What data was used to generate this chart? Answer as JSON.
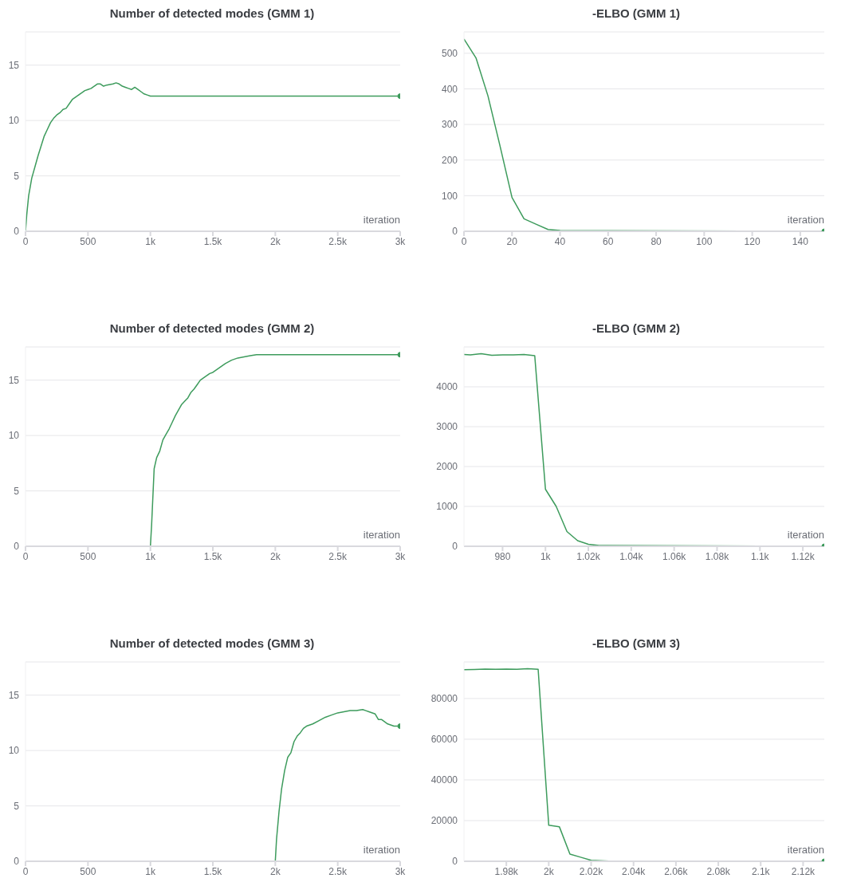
{
  "chart_data": [
    {
      "type": "line",
      "title": "Number of detected modes (GMM 1)",
      "xlabel": "iteration",
      "color": "#3d9b5c",
      "grid": "y",
      "xlim": [
        0,
        3000
      ],
      "xticks": [
        0,
        500,
        {
          "value": 1000,
          "label": "1k"
        },
        {
          "value": 1500,
          "label": "1.5k"
        },
        {
          "value": 2000,
          "label": "2k"
        },
        {
          "value": 2500,
          "label": "2.5k"
        },
        {
          "value": 3000,
          "label": "3k"
        }
      ],
      "ylim": [
        0,
        18
      ],
      "yticks": [
        0,
        5,
        10,
        15
      ],
      "x": [
        0,
        10,
        25,
        50,
        75,
        100,
        125,
        150,
        175,
        200,
        225,
        250,
        275,
        300,
        325,
        350,
        375,
        400,
        425,
        450,
        475,
        500,
        525,
        550,
        575,
        600,
        625,
        650,
        700,
        725,
        750,
        775,
        800,
        825,
        850,
        875,
        900,
        925,
        950,
        975,
        1000,
        3000
      ],
      "values": [
        0,
        1.5,
        3.2,
        4.8,
        5.8,
        6.8,
        7.7,
        8.6,
        9.2,
        9.8,
        10.2,
        10.5,
        10.7,
        11.0,
        11.1,
        11.5,
        11.9,
        12.1,
        12.3,
        12.5,
        12.7,
        12.8,
        12.9,
        13.1,
        13.3,
        13.3,
        13.1,
        13.2,
        13.3,
        13.4,
        13.3,
        13.1,
        13.0,
        12.9,
        12.8,
        13.0,
        12.8,
        12.6,
        12.4,
        12.3,
        12.2,
        12.2
      ]
    },
    {
      "type": "line",
      "title": "-ELBO (GMM 1)",
      "xlabel": "iteration",
      "color": "#3d9b5c",
      "grid": "y",
      "xlim": [
        0,
        150
      ],
      "xticks": [
        0,
        20,
        40,
        60,
        80,
        100,
        120,
        140
      ],
      "ylim": [
        0,
        560
      ],
      "yticks": [
        0,
        100,
        200,
        300,
        400,
        500
      ],
      "x": [
        0,
        5,
        10,
        15,
        20,
        25,
        30,
        35,
        40,
        150
      ],
      "values": [
        540,
        487,
        380,
        240,
        95,
        35,
        20,
        5,
        2,
        0
      ]
    },
    {
      "type": "line",
      "title": "Number of detected modes (GMM 2)",
      "xlabel": "iteration",
      "color": "#3d9b5c",
      "grid": "y",
      "xlim": [
        0,
        3000
      ],
      "xticks": [
        0,
        500,
        {
          "value": 1000,
          "label": "1k"
        },
        {
          "value": 1500,
          "label": "1.5k"
        },
        {
          "value": 2000,
          "label": "2k"
        },
        {
          "value": 2500,
          "label": "2.5k"
        },
        {
          "value": 3000,
          "label": "3k"
        }
      ],
      "ylim": [
        0,
        18
      ],
      "yticks": [
        0,
        5,
        10,
        15
      ],
      "x": [
        0,
        1000,
        1010,
        1030,
        1050,
        1075,
        1100,
        1125,
        1150,
        1175,
        1200,
        1225,
        1250,
        1275,
        1300,
        1325,
        1350,
        1375,
        1400,
        1425,
        1450,
        1475,
        1500,
        1550,
        1600,
        1650,
        1700,
        1750,
        1800,
        1850,
        1900,
        2000,
        3000
      ],
      "values": [
        0,
        0,
        2,
        7,
        8,
        8.6,
        9.6,
        10.1,
        10.6,
        11.2,
        11.8,
        12.3,
        12.8,
        13.1,
        13.4,
        13.9,
        14.2,
        14.6,
        15.0,
        15.2,
        15.4,
        15.6,
        15.7,
        16.1,
        16.5,
        16.8,
        17.0,
        17.1,
        17.2,
        17.3,
        17.3,
        17.3,
        17.3
      ]
    },
    {
      "type": "line",
      "title": "-ELBO (GMM 2)",
      "xlabel": "iteration",
      "color": "#3d9b5c",
      "grid": "y",
      "xlim": [
        962,
        1130
      ],
      "xticks": [
        980,
        {
          "value": 1000,
          "label": "1k"
        },
        {
          "value": 1020,
          "label": "1.02k"
        },
        {
          "value": 1040,
          "label": "1.04k"
        },
        {
          "value": 1060,
          "label": "1.06k"
        },
        {
          "value": 1080,
          "label": "1.08k"
        },
        {
          "value": 1100,
          "label": "1.1k"
        },
        {
          "value": 1120,
          "label": "1.12k"
        }
      ],
      "ylim": [
        0,
        5000
      ],
      "yticks": [
        0,
        1000,
        2000,
        3000,
        4000
      ],
      "x": [
        962,
        965,
        970,
        975,
        980,
        985,
        990,
        995,
        1000,
        1005,
        1010,
        1015,
        1020,
        1025,
        1130
      ],
      "values": [
        4810,
        4800,
        4830,
        4790,
        4800,
        4800,
        4810,
        4780,
        1430,
        1000,
        370,
        140,
        50,
        20,
        0
      ]
    },
    {
      "type": "line",
      "title": "Number of detected modes (GMM 3)",
      "xlabel": "iteration",
      "color": "#3d9b5c",
      "grid": "y",
      "xlim": [
        0,
        3000
      ],
      "xticks": [
        0,
        500,
        {
          "value": 1000,
          "label": "1k"
        },
        {
          "value": 1500,
          "label": "1.5k"
        },
        {
          "value": 2000,
          "label": "2k"
        },
        {
          "value": 2500,
          "label": "2.5k"
        },
        {
          "value": 3000,
          "label": "3k"
        }
      ],
      "ylim": [
        0,
        18
      ],
      "yticks": [
        0,
        5,
        10,
        15
      ],
      "x": [
        0,
        2000,
        2010,
        2030,
        2050,
        2075,
        2100,
        2125,
        2150,
        2175,
        2200,
        2225,
        2250,
        2300,
        2350,
        2400,
        2450,
        2500,
        2550,
        2600,
        2650,
        2700,
        2725,
        2750,
        2800,
        2825,
        2850,
        2900,
        2950,
        3000
      ],
      "values": [
        0,
        0,
        2,
        4.5,
        6.5,
        8.2,
        9.4,
        9.8,
        10.8,
        11.3,
        11.6,
        12.0,
        12.2,
        12.4,
        12.7,
        13.0,
        13.2,
        13.4,
        13.5,
        13.6,
        13.6,
        13.7,
        13.6,
        13.5,
        13.3,
        12.8,
        12.8,
        12.4,
        12.2,
        12.2
      ]
    },
    {
      "type": "line",
      "title": "-ELBO (GMM 3)",
      "xlabel": "iteration",
      "color": "#3d9b5c",
      "grid": "y",
      "xlim": [
        1960,
        2130
      ],
      "xticks": [
        {
          "value": 1980,
          "label": "1.98k"
        },
        {
          "value": 2000,
          "label": "2k"
        },
        {
          "value": 2020,
          "label": "2.02k"
        },
        {
          "value": 2040,
          "label": "2.04k"
        },
        {
          "value": 2060,
          "label": "2.06k"
        },
        {
          "value": 2080,
          "label": "2.08k"
        },
        {
          "value": 2100,
          "label": "2.1k"
        },
        {
          "value": 2120,
          "label": "2.12k"
        }
      ],
      "ylim": [
        0,
        98000
      ],
      "yticks": [
        0,
        20000,
        40000,
        60000,
        80000
      ],
      "x": [
        1960,
        1965,
        1970,
        1975,
        1980,
        1985,
        1990,
        1995,
        2000,
        2005,
        2010,
        2015,
        2020,
        2030,
        2130
      ],
      "values": [
        94200,
        94300,
        94500,
        94400,
        94500,
        94400,
        94700,
        94400,
        17700,
        17000,
        3500,
        2000,
        500,
        0,
        0
      ]
    }
  ]
}
